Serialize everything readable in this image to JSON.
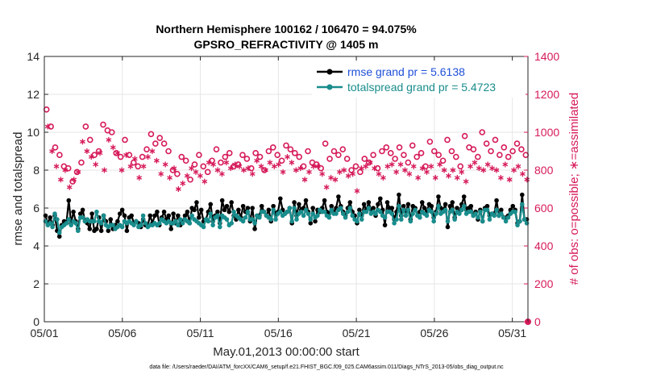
{
  "chart_data": {
    "type": "line",
    "title": "Northern Hemisphere 100162 / 106470 = 94.075%",
    "subtitle": "GPSRO_REFRACTIVITY @ 1405 m",
    "xlabel": "May.01,2013 00:00:00 start",
    "ylabel": "rmse and totalspread",
    "y2label": "# of obs: o=possible; ∗=assimilated",
    "footnote": "data file: /Users/raeder/DAI/ATM_forcXX/CAM6_setup/f.e21.FHIST_BGC.f09_025.CAM6assim.011/Diags_NTrS_2013-05/obs_diag_output.nc",
    "xlim": [
      0,
      31
    ],
    "ylim": [
      0,
      14
    ],
    "y2lim": [
      0,
      1400
    ],
    "x_ticks": [
      0,
      5,
      10,
      15,
      20,
      25,
      30
    ],
    "x_tick_labels": [
      "05/01",
      "05/06",
      "05/11",
      "05/16",
      "05/21",
      "05/26",
      "05/31"
    ],
    "y_ticks": [
      0,
      2,
      4,
      6,
      8,
      10,
      12,
      14
    ],
    "y2_ticks": [
      0,
      200,
      400,
      600,
      800,
      1000,
      1200,
      1400
    ],
    "grid": true,
    "legend_position": "top-right",
    "series": [
      {
        "name": "rmse grand pr = 5.6138",
        "color": "#000000",
        "axis": "left",
        "marker": "filled-circle",
        "values": [
          5.6,
          5.2,
          5.5,
          5.1,
          5.6,
          4.8,
          4.5,
          5.1,
          5.3,
          5.2,
          6.4,
          5.2,
          5.8,
          5.3,
          4.9,
          5.7,
          5.9,
          5.3,
          5.2,
          4.9,
          5.7,
          4.8,
          4.9,
          5.5,
          4.8,
          5.6,
          5.3,
          4.8,
          5.4,
          4.9,
          5.1,
          5.3,
          5.7,
          5.9,
          5.6,
          4.8,
          5.5,
          5.6,
          5.2,
          5.3,
          5.2,
          5.0,
          5.4,
          5.1,
          5.1,
          5.6,
          5.2,
          5.6,
          5.8,
          5.1,
          5.5,
          5.8,
          5.4,
          5.6,
          4.9,
          5.7,
          5.2,
          5.6,
          5.1,
          5.3,
          5.6,
          5.8,
          5.2,
          6.0,
          5.9,
          6.3,
          5.5,
          5.9,
          5.3,
          5.4,
          5.8,
          6.2,
          5.3,
          5.6,
          5.8,
          5.2,
          6.4,
          5.9,
          6.1,
          5.8,
          6.3,
          5.6,
          5.4,
          5.9,
          5.5,
          6.1,
          5.8,
          6.0,
          5.3,
          6.0,
          4.9,
          5.6,
          5.6,
          6.1,
          5.8,
          5.6,
          5.9,
          5.3,
          6.1,
          5.7,
          5.8,
          6.5,
          5.9,
          5.7,
          5.8,
          6.0,
          5.2,
          6.3,
          5.6,
          6.2,
          5.9,
          6.0,
          6.4,
          5.8,
          5.2,
          6.0,
          5.3,
          5.9,
          5.8,
          6.0,
          6.4,
          5.8,
          5.7,
          6.1,
          5.8,
          6.0,
          6.6,
          6.1,
          5.8,
          5.6,
          6.0,
          6.3,
          5.8,
          5.6,
          5.2,
          5.9,
          5.6,
          6.2,
          5.9,
          6.3,
          5.9,
          6.0,
          5.6,
          6.2,
          6.5,
          5.9,
          5.1,
          6.3,
          6.0,
          6.0,
          5.4,
          5.8,
          6.7,
          5.6,
          6.1,
          5.8,
          6.2,
          5.4,
          6.1,
          6.0,
          5.6,
          5.8,
          6.3,
          6.0,
          5.8,
          6.2,
          6.1,
          5.5,
          5.8,
          6.6,
          6.0,
          5.9,
          6.2,
          5.0,
          6.1,
          6.3,
          5.5,
          6.0,
          5.8,
          6.2,
          6.6,
          5.9,
          6.0,
          6.1,
          5.6,
          5.8,
          5.4,
          5.9,
          5.3,
          6.0,
          6.1,
          5.6,
          5.7,
          5.7,
          6.4,
          5.6,
          5.9,
          5.5,
          5.5,
          5.6,
          5.9,
          6.1,
          5.9,
          5.2,
          5.3,
          6.7,
          5.4,
          5.4
        ],
        "draw_values": [
          5.6,
          5.2,
          5.5,
          5.1,
          5.6,
          4.8,
          4.5,
          5.1,
          5.3,
          5.2,
          6.4,
          5.2,
          5.8,
          5.3,
          4.9,
          5.7,
          5.9,
          5.3,
          5.2,
          4.9,
          5.7,
          4.8,
          4.9,
          5.5,
          4.8,
          5.6,
          5.3,
          4.8,
          5.4,
          4.9,
          5.1,
          5.3,
          5.7,
          5.9,
          5.6,
          4.8,
          5.5,
          5.6,
          5.2,
          5.3,
          5.2,
          5.0,
          5.4,
          5.1,
          5.1,
          5.6,
          5.2,
          5.6,
          5.8,
          5.1,
          5.5,
          5.8,
          5.4,
          5.6,
          4.9,
          5.7,
          5.2,
          5.6,
          5.1,
          5.3,
          5.6,
          5.8,
          5.2,
          6.0,
          5.9,
          6.3,
          5.5,
          5.9,
          5.3,
          5.4,
          5.8,
          6.2,
          5.3,
          5.6,
          5.8,
          5.2,
          6.4,
          5.9,
          6.1,
          5.8,
          6.3,
          5.6,
          5.4,
          5.9,
          5.5,
          6.1,
          5.8,
          6.0,
          5.3,
          6.0,
          4.9,
          5.6,
          5.6,
          6.1,
          5.8,
          5.6,
          5.9,
          5.3,
          6.1,
          5.7,
          5.8,
          6.5,
          5.9,
          5.7,
          5.8,
          6.0,
          5.2,
          6.3,
          5.6,
          6.2,
          5.9,
          6.0,
          6.4,
          5.8,
          5.2,
          6.0,
          5.3,
          5.9,
          5.8,
          6.0,
          6.4,
          5.8,
          5.7,
          6.1,
          5.8,
          6.0,
          6.6,
          6.1,
          5.8,
          5.6,
          6.0,
          6.3,
          5.8,
          5.6,
          5.2,
          5.9,
          5.6,
          6.2,
          5.9,
          6.3,
          5.9,
          6.0,
          5.6,
          6.2,
          6.5,
          5.9,
          5.1,
          6.3,
          6.0,
          6.0,
          5.4,
          5.8,
          6.7,
          5.6,
          6.1,
          5.8,
          6.2,
          5.4,
          6.1,
          6.0,
          5.6,
          5.8,
          6.3,
          6.0,
          5.8,
          6.2,
          6.1,
          5.5,
          5.8,
          6.6,
          6.0,
          5.9,
          6.2,
          5.0,
          6.1,
          6.3,
          5.5,
          6.0,
          5.8,
          6.2,
          6.6,
          5.9,
          6.0,
          6.1,
          5.6,
          5.8,
          5.4,
          5.9,
          5.3,
          6.0,
          6.1,
          5.6,
          5.7,
          5.7,
          6.4,
          5.6,
          5.9,
          5.5,
          5.5,
          5.6,
          5.9,
          6.1,
          5.9,
          5.2,
          5.3,
          6.7,
          5.4,
          5.4
        ]
      },
      {
        "name": "totalspread grand pr = 5.4723",
        "color": "#198c8c",
        "axis": "left",
        "marker": "filled-circle",
        "values": [
          5.3,
          5.1,
          5.2,
          5.0,
          5.7,
          5.4,
          4.7,
          5.0,
          5.1,
          5.2,
          5.4,
          5.1,
          5.3,
          5.2,
          4.8,
          5.5,
          5.5,
          5.3,
          5.4,
          5.3,
          5.3,
          5.3,
          5.8,
          5.3,
          5.2,
          5.6,
          5.1,
          5.0,
          5.1,
          5.1,
          4.9,
          5.0,
          5.1,
          5.0,
          5.3,
          5.2,
          5.3,
          5.2,
          5.1,
          5.3,
          5.0,
          5.1,
          5.6,
          5.2,
          5.0,
          5.1,
          5.1,
          5.2,
          5.1,
          5.2,
          5.4,
          5.3,
          5.2,
          5.3,
          5.2,
          5.2,
          5.3,
          5.1,
          5.4,
          5.2,
          5.4,
          5.3,
          5.2,
          5.6,
          5.4,
          5.3,
          5.2,
          5.1,
          5.0,
          5.4,
          5.3,
          5.7,
          5.1,
          5.5,
          5.6,
          5.0,
          5.6,
          5.5,
          5.4,
          5.1,
          5.2,
          5.8,
          5.6,
          5.5,
          5.4,
          5.3,
          5.5,
          5.8,
          5.4,
          5.4,
          5.2,
          5.6,
          5.5,
          5.8,
          5.8,
          5.6,
          5.5,
          5.4,
          5.9,
          5.4,
          5.7,
          5.8,
          5.6,
          5.7,
          5.8,
          6.0,
          5.3,
          6.0,
          5.4,
          5.7,
          5.8,
          5.6,
          5.9,
          5.7,
          5.4,
          5.7,
          5.5,
          5.6,
          5.9,
          5.8,
          5.8,
          5.6,
          5.5,
          5.9,
          5.7,
          5.7,
          5.9,
          6.0,
          5.7,
          5.5,
          5.8,
          6.0,
          5.6,
          5.4,
          5.3,
          5.7,
          5.4,
          5.8,
          5.8,
          6.0,
          5.7,
          5.8,
          5.7,
          5.9,
          5.8,
          5.6,
          5.5,
          5.8,
          5.8,
          5.7,
          5.2,
          5.4,
          6.1,
          5.4,
          5.9,
          5.6,
          5.9,
          5.3,
          5.7,
          5.9,
          5.6,
          5.5,
          5.8,
          5.7,
          5.6,
          5.9,
          5.8,
          5.3,
          5.7,
          6.1,
          5.7,
          5.8,
          5.9,
          5.3,
          5.8,
          5.9,
          5.4,
          5.8,
          5.7,
          5.9,
          6.1,
          5.7,
          5.8,
          5.8,
          5.6,
          5.7,
          5.5,
          5.8,
          5.3,
          5.9,
          5.9,
          5.4,
          5.7,
          5.6,
          5.9,
          5.6,
          5.7,
          5.5,
          5.3,
          5.5,
          5.7,
          5.8,
          5.8,
          5.1,
          5.3,
          6.2,
          5.4,
          5.2
        ],
        "draw_values": [
          5.3,
          5.1,
          5.2,
          5.0,
          5.7,
          5.4,
          4.7,
          5.0,
          5.1,
          5.2,
          5.4,
          5.1,
          5.3,
          5.2,
          4.8,
          5.5,
          5.5,
          5.3,
          5.4,
          5.3,
          5.3,
          5.3,
          5.8,
          5.3,
          5.2,
          5.6,
          5.1,
          5.0,
          5.1,
          5.1,
          4.9,
          5.0,
          5.1,
          5.0,
          5.3,
          5.2,
          5.3,
          5.2,
          5.1,
          5.3,
          5.0,
          5.1,
          5.6,
          5.2,
          5.0,
          5.1,
          5.1,
          5.2,
          5.1,
          5.2,
          5.4,
          5.3,
          5.2,
          5.3,
          5.2,
          5.2,
          5.3,
          5.1,
          5.4,
          5.2,
          5.4,
          5.3,
          5.2,
          5.6,
          5.4,
          5.3,
          5.2,
          5.1,
          5.0,
          5.4,
          5.3,
          5.7,
          5.1,
          5.5,
          5.6,
          5.0,
          5.6,
          5.5,
          5.4,
          5.1,
          5.2,
          5.8,
          5.6,
          5.5,
          5.4,
          5.3,
          5.5,
          5.8,
          5.4,
          5.4,
          5.2,
          5.6,
          5.5,
          5.8,
          5.8,
          5.6,
          5.5,
          5.4,
          5.9,
          5.4,
          5.7,
          5.8,
          5.6,
          5.7,
          5.8,
          6.0,
          5.3,
          6.0,
          5.4,
          5.7,
          5.8,
          5.6,
          5.9,
          5.7,
          5.4,
          5.7,
          5.5,
          5.6,
          5.9,
          5.8,
          5.8,
          5.6,
          5.5,
          5.9,
          5.7,
          5.7,
          5.9,
          6.0,
          5.7,
          5.5,
          5.8,
          6.0,
          5.6,
          5.4,
          5.3,
          5.7,
          5.4,
          5.8,
          5.8,
          6.0,
          5.7,
          5.8,
          5.7,
          5.9,
          5.8,
          5.6,
          5.5,
          5.8,
          5.8,
          5.7,
          5.2,
          5.4,
          6.1,
          5.4,
          5.9,
          5.6,
          5.9,
          5.3,
          5.7,
          5.9,
          5.6,
          5.5,
          5.8,
          5.7,
          5.6,
          5.9,
          5.8,
          5.3,
          5.7,
          6.1,
          5.7,
          5.8,
          5.9,
          5.3,
          5.8,
          5.9,
          5.4,
          5.8,
          5.7,
          5.9,
          6.1,
          5.7,
          5.8,
          5.8,
          5.6,
          5.7,
          5.5,
          5.8,
          5.3,
          5.9,
          5.9,
          5.4,
          5.7,
          5.6,
          5.9,
          5.6,
          5.7,
          5.5,
          5.3,
          5.5,
          5.7,
          5.8,
          5.8,
          5.1,
          5.3,
          6.2,
          5.4,
          5.2
        ]
      },
      {
        "name": "possible obs",
        "color": "#d61a5a",
        "axis": "right",
        "marker": "open-circle",
        "values": [
          1120,
          1030,
          920,
          880,
          820,
          810,
          740,
          790,
          840,
          1030,
          960,
          880,
          900,
          1040,
          1010,
          1000,
          890,
          870,
          960,
          880,
          840,
          820,
          870,
          910,
          990,
          940,
          970,
          940,
          900,
          800,
          780,
          870,
          850,
          750,
          830,
          880,
          820,
          790,
          850,
          910,
          840,
          870,
          890,
          820,
          830,
          880,
          860,
          810,
          890,
          870,
          800,
          900,
          920,
          880,
          850,
          930,
          910,
          890,
          870,
          820,
          900,
          840,
          830,
          810,
          940,
          860,
          900,
          880,
          910,
          860,
          800,
          820,
          790,
          860,
          840,
          880,
          810,
          900,
          920,
          890,
          860,
          920,
          880,
          840,
          930,
          870,
          890,
          820,
          950,
          900,
          880,
          850,
          960,
          900,
          870,
          820,
          980,
          920,
          910,
          870,
          1000,
          940,
          900,
          960,
          880,
          920,
          870,
          900,
          940,
          910,
          880
        ]
      },
      {
        "name": "assimilated obs",
        "color": "#d61a5a",
        "axis": "right",
        "marker": "asterisk",
        "values": [
          1030,
          900,
          820,
          750,
          800,
          710,
          750,
          790,
          950,
          900,
          870,
          830,
          890,
          800,
          960,
          920,
          890,
          800,
          880,
          820,
          860,
          760,
          820,
          870,
          900,
          850,
          780,
          830,
          760,
          810,
          700,
          730,
          770,
          810,
          790,
          770,
          740,
          840,
          830,
          800,
          780,
          840,
          810,
          830,
          820,
          800,
          810,
          780,
          850,
          820,
          800,
          840,
          820,
          830,
          790,
          870,
          840,
          800,
          810,
          750,
          790,
          820,
          820,
          780,
          710,
          760,
          750,
          790,
          800,
          770,
          780,
          690,
          810,
          820,
          840,
          810,
          780,
          760,
          820,
          830,
          790,
          830,
          800,
          780,
          820,
          760,
          810,
          790,
          820,
          760,
          830,
          800,
          770,
          800,
          760,
          790,
          740,
          820,
          840,
          810,
          800,
          830,
          810,
          800,
          760,
          830,
          750,
          800,
          820,
          780,
          750
        ]
      }
    ]
  }
}
